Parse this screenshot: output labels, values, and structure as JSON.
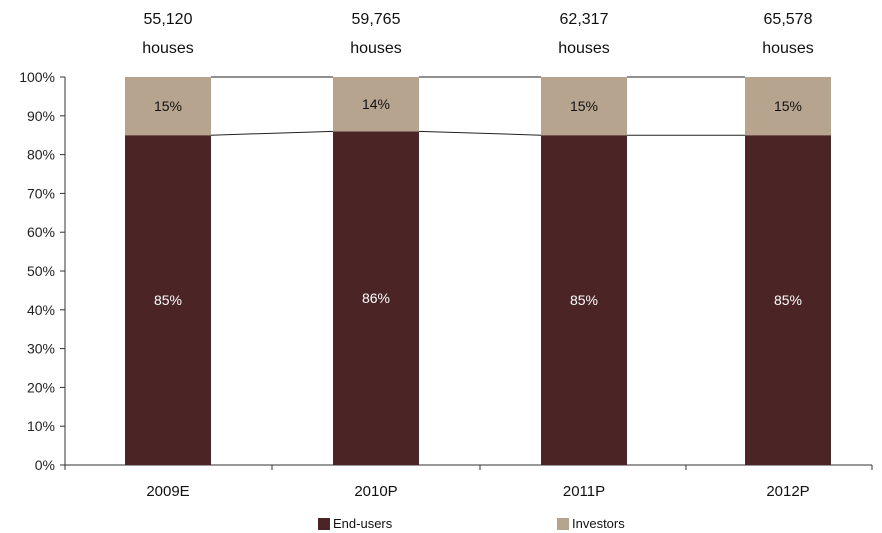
{
  "colors": {
    "end_users": "#4b2426",
    "investors": "#b7a48e",
    "axis": "#333333",
    "background": "#ffffff"
  },
  "chart_data": {
    "type": "bar",
    "stacked": true,
    "categories": [
      "2009E",
      "2010P",
      "2011P",
      "2012P"
    ],
    "series": [
      {
        "name": "End-users",
        "values": [
          85,
          86,
          85,
          85
        ],
        "labels": [
          "85%",
          "86%",
          "85%",
          "85%"
        ]
      },
      {
        "name": "Investors",
        "values": [
          15,
          14,
          15,
          15
        ],
        "labels": [
          "15%",
          "14%",
          "15%",
          "15%"
        ]
      }
    ],
    "totals": [
      {
        "count": "55,120",
        "unit": "houses"
      },
      {
        "count": "59,765",
        "unit": "houses"
      },
      {
        "count": "62,317",
        "unit": "houses"
      },
      {
        "count": "65,578",
        "unit": "houses"
      }
    ],
    "ylim": [
      0,
      100
    ],
    "yticks": [
      "0%",
      "10%",
      "20%",
      "30%",
      "40%",
      "50%",
      "60%",
      "70%",
      "80%",
      "90%",
      "100%"
    ],
    "xlabel": "",
    "ylabel": "",
    "grid": false,
    "series_connector_lines": true,
    "legend": {
      "position": "bottom",
      "items": [
        "End-users",
        "Investors"
      ]
    }
  }
}
